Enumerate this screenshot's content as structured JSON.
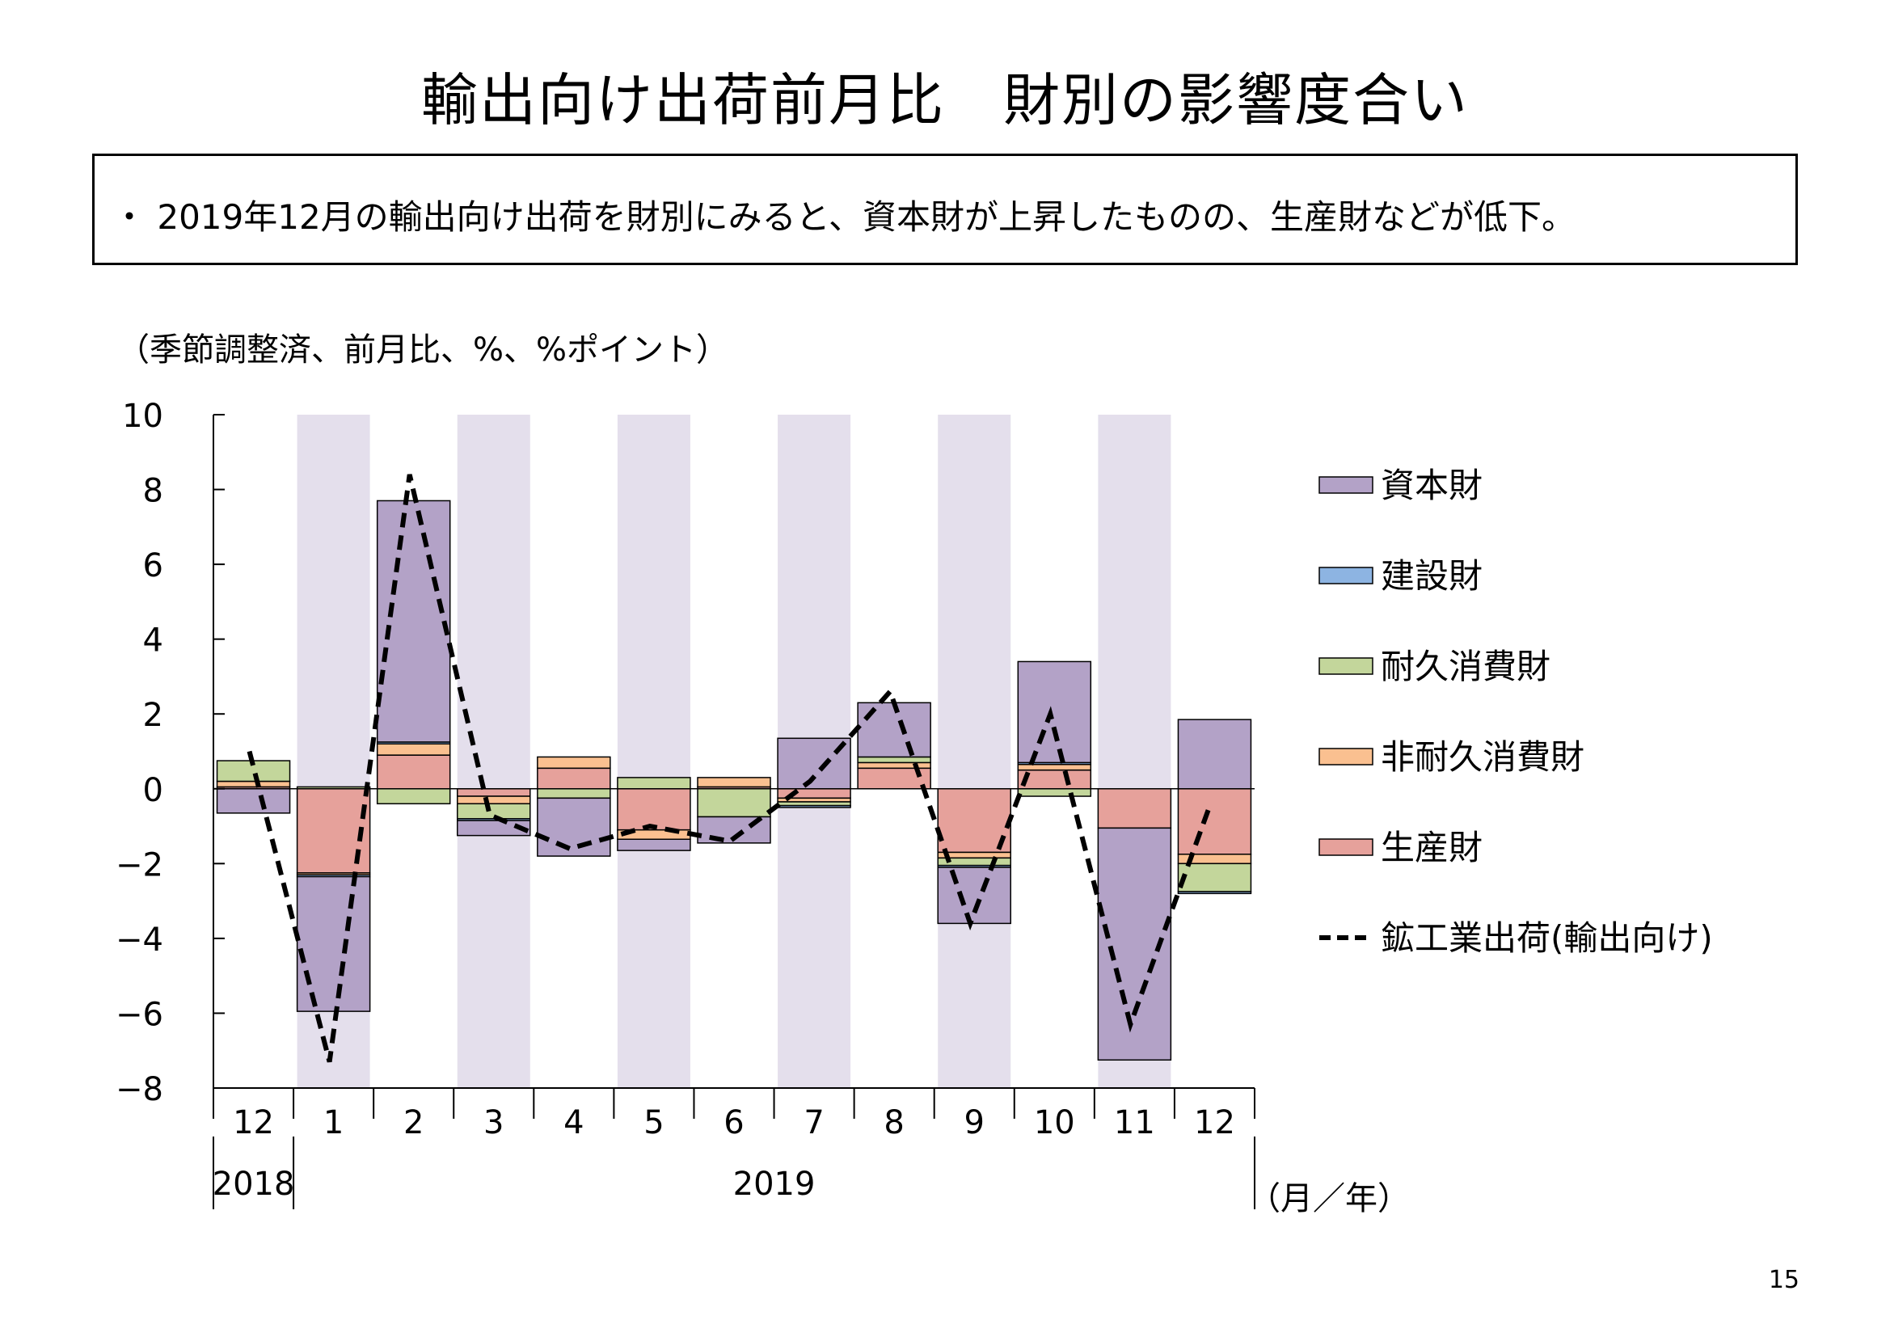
{
  "page": {
    "title": "輸出向け出荷前月比　財別の影響度合い",
    "summary": "・ 2019年12月の輸出向け出荷を財別にみると、資本財が上昇したものの、生産財などが低下。",
    "unit_note": "（季節調整済、前月比、%、%ポイント）",
    "page_number": "15"
  },
  "chart_data": {
    "type": "bar",
    "stacked": true,
    "ylim": [
      -8,
      10
    ],
    "y_ticks": [
      10,
      8,
      6,
      4,
      2,
      0,
      -2,
      -4,
      -6,
      -8
    ],
    "categories": [
      "12",
      "1",
      "2",
      "3",
      "4",
      "5",
      "6",
      "7",
      "8",
      "9",
      "10",
      "11",
      "12"
    ],
    "year_labels": [
      {
        "label": "2018",
        "from": 0,
        "to": 0
      },
      {
        "label": "2019",
        "from": 1,
        "to": 12
      }
    ],
    "x_unit": "（月／年）",
    "shaded_categories": [
      1,
      3,
      5,
      7,
      9,
      11
    ],
    "series": [
      {
        "name": "生産財",
        "color": "#e6a19b",
        "values": [
          0.05,
          -2.25,
          0.9,
          -0.2,
          0.55,
          -1.1,
          0.05,
          -0.25,
          0.55,
          -1.7,
          0.5,
          -1.05,
          -1.75
        ]
      },
      {
        "name": "非耐久消費財",
        "color": "#fac090",
        "values": [
          0.15,
          -0.05,
          0.3,
          -0.2,
          0.3,
          -0.25,
          0.25,
          -0.1,
          0.15,
          -0.15,
          0.15,
          0.0,
          -0.25
        ]
      },
      {
        "name": "耐久消費財",
        "color": "#c3d69b",
        "values": [
          0.55,
          0.05,
          -0.4,
          -0.4,
          -0.25,
          0.3,
          -0.75,
          -0.1,
          0.15,
          -0.2,
          -0.2,
          0.0,
          -0.75
        ]
      },
      {
        "name": "建設財",
        "color": "#8db4e2",
        "values": [
          0.0,
          -0.05,
          0.05,
          -0.05,
          0.0,
          0.0,
          0.0,
          -0.05,
          0.0,
          -0.05,
          0.05,
          0.0,
          -0.05
        ]
      },
      {
        "name": "資本財",
        "color": "#b3a2c7",
        "values": [
          -0.65,
          -3.6,
          6.45,
          -0.4,
          -1.55,
          -0.3,
          -0.7,
          1.35,
          1.45,
          -1.5,
          2.7,
          -6.2,
          1.85
        ]
      }
    ],
    "line": {
      "name": "鉱工業出荷(輸出向け)",
      "color": "#000000",
      "values": [
        1.0,
        -7.3,
        8.4,
        -0.7,
        -1.6,
        -1.0,
        -1.4,
        0.2,
        2.6,
        -3.6,
        2.0,
        -6.3,
        -0.4
      ]
    },
    "legend": {
      "placement": "right",
      "order": [
        "資本財",
        "建設財",
        "耐久消費財",
        "非耐久消費財",
        "生産財",
        "鉱工業出荷(輸出向け)"
      ]
    }
  }
}
